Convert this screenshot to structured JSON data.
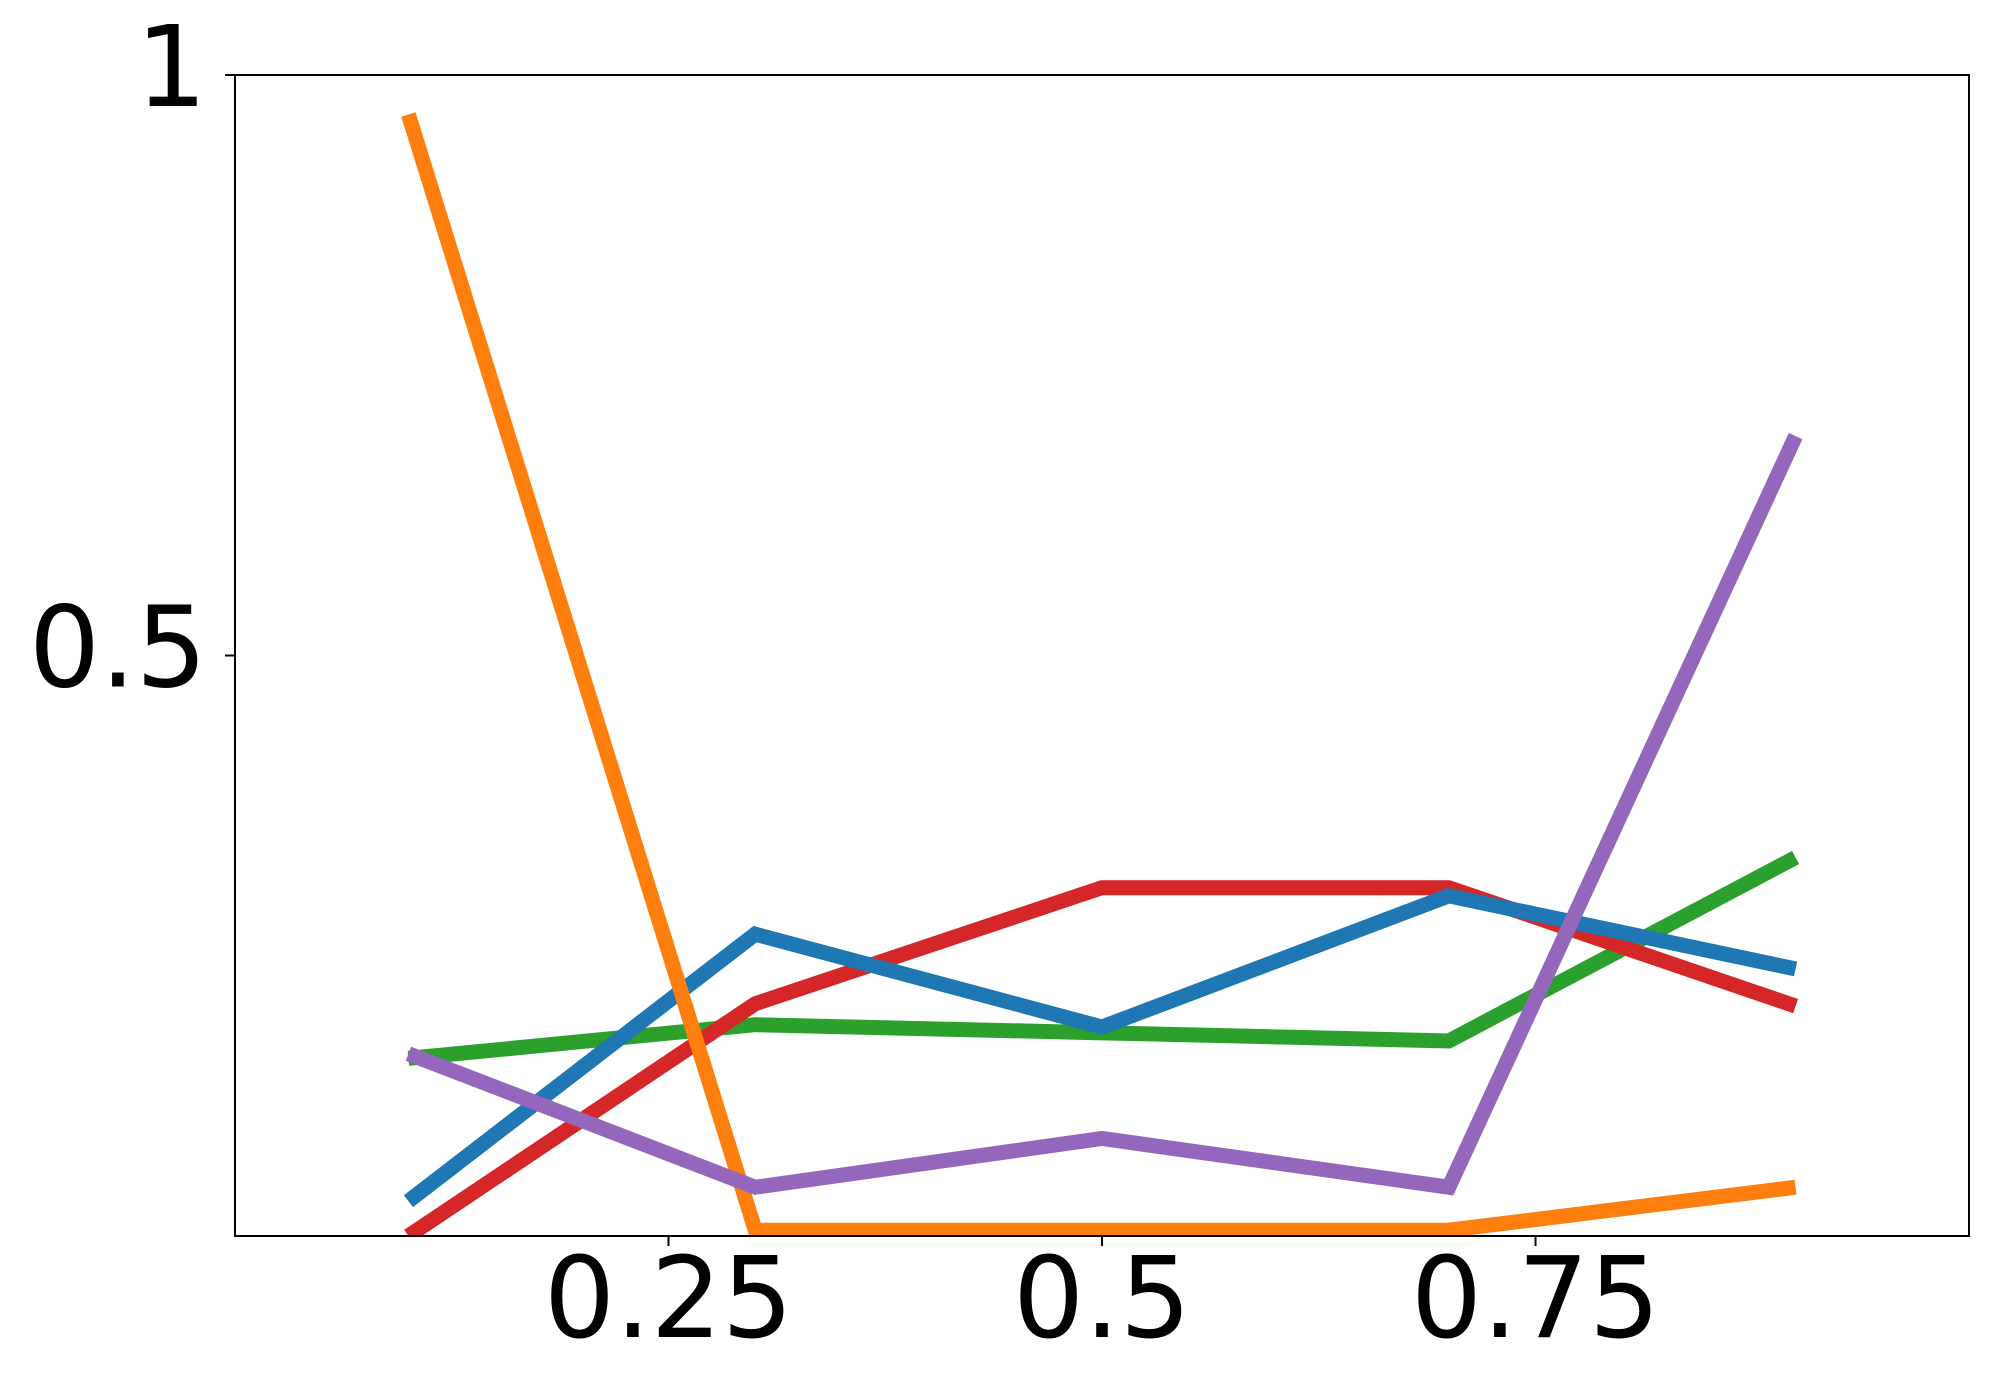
{
  "chart_data": {
    "type": "line",
    "x": [
      0.1,
      0.3,
      0.5,
      0.7,
      0.9
    ],
    "series": [
      {
        "color": "#2ca02c",
        "values": [
          0.153,
          0.182,
          0.175,
          0.168,
          0.326
        ]
      },
      {
        "color": "#d62728",
        "values": [
          0.0,
          0.2,
          0.3,
          0.3,
          0.198
        ]
      },
      {
        "color": "#1f77b4",
        "values": [
          0.03,
          0.26,
          0.18,
          0.293,
          0.23
        ]
      },
      {
        "color": "#ff7f0e",
        "values": [
          0.966,
          0.005,
          0.005,
          0.005,
          0.042
        ]
      },
      {
        "color": "#9467bd",
        "values": [
          0.157,
          0.042,
          0.084,
          0.042,
          0.689
        ]
      }
    ],
    "xlim": [
      0,
      1
    ],
    "xticks": [
      0.25,
      0.5,
      0.75
    ],
    "ylim": [
      0,
      1
    ],
    "yticks": [
      0.5,
      1.0
    ]
  }
}
